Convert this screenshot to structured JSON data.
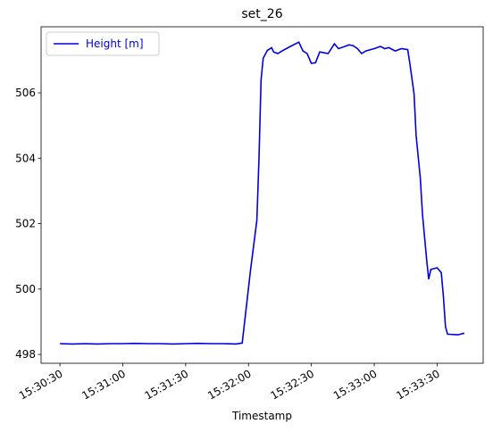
{
  "chart_data": {
    "type": "line",
    "title": "set_26",
    "xlabel": "Timestamp",
    "x": [
      "15:30:30",
      "15:30:36",
      "15:30:42",
      "15:30:48",
      "15:30:54",
      "15:31:00",
      "15:31:06",
      "15:31:12",
      "15:31:18",
      "15:31:24",
      "15:31:30",
      "15:31:36",
      "15:31:42",
      "15:31:48",
      "15:31:54",
      "15:31:57",
      "15:32:01",
      "15:32:04",
      "15:32:05",
      "15:32:06",
      "15:32:07",
      "15:32:09",
      "15:32:11",
      "15:32:12",
      "15:32:14",
      "15:32:16",
      "15:32:20",
      "15:32:24",
      "15:32:26",
      "15:32:28",
      "15:32:30",
      "15:32:32",
      "15:32:34",
      "15:32:38",
      "15:32:41",
      "15:32:43",
      "15:32:46",
      "15:32:48",
      "15:32:50",
      "15:32:52",
      "15:32:54",
      "15:32:56",
      "15:33:00",
      "15:33:03",
      "15:33:05",
      "15:33:07",
      "15:33:10",
      "15:33:13",
      "15:33:16",
      "15:33:17",
      "15:33:19",
      "15:33:20",
      "15:33:22",
      "15:33:23",
      "15:33:25",
      "15:33:26",
      "15:33:27",
      "15:33:30",
      "15:33:32",
      "15:33:33",
      "15:33:34",
      "15:33:35",
      "15:33:40",
      "15:33:43"
    ],
    "series": [
      {
        "name": "Height [m]",
        "color": "#0000e0",
        "values": [
          498.33,
          498.32,
          498.33,
          498.32,
          498.33,
          498.33,
          498.34,
          498.33,
          498.33,
          498.32,
          498.33,
          498.34,
          498.33,
          498.33,
          498.32,
          498.35,
          500.6,
          502.1,
          504.0,
          506.4,
          507.06,
          507.3,
          507.38,
          507.25,
          507.2,
          507.28,
          507.42,
          507.55,
          507.28,
          507.2,
          506.9,
          506.92,
          507.25,
          507.2,
          507.5,
          507.35,
          507.42,
          507.47,
          507.44,
          507.35,
          507.2,
          507.28,
          507.35,
          507.42,
          507.35,
          507.38,
          507.28,
          507.35,
          507.32,
          506.9,
          505.97,
          504.7,
          503.4,
          502.3,
          500.9,
          500.3,
          500.6,
          500.65,
          500.5,
          499.8,
          498.85,
          498.62,
          498.6,
          498.65
        ]
      }
    ],
    "xlim": [
      "15:30:21",
      "15:33:52"
    ],
    "xticks": [
      "15:30:30",
      "15:31:00",
      "15:31:30",
      "15:32:00",
      "15:32:30",
      "15:33:00",
      "15:33:30"
    ],
    "ylim": [
      497.73,
      508.02
    ],
    "yticks": [
      498,
      500,
      502,
      504,
      506
    ],
    "legend": "upper left"
  }
}
